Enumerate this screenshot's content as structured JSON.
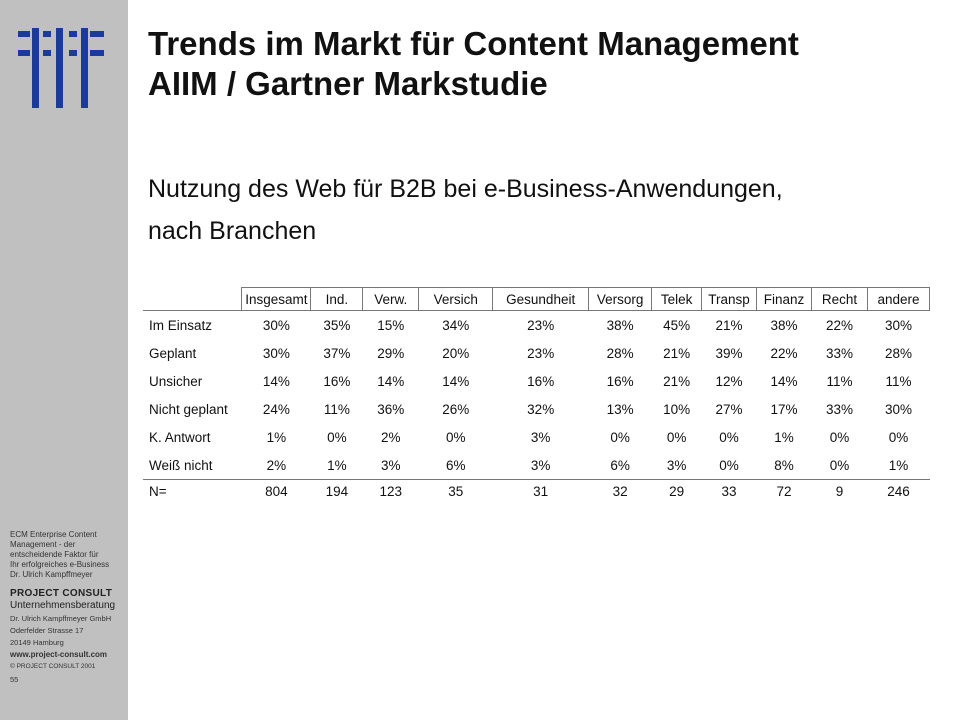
{
  "slide": {
    "title_line1": "Trends im Markt für Content Management",
    "title_line2": "AIIM / Gartner Markstudie",
    "subtitle_line1": "Nutzung des Web für B2B bei e-Business-Anwendungen,",
    "subtitle_line2": "nach Branchen"
  },
  "table": {
    "headers": [
      "Insgesamt",
      "Ind.",
      "Verw.",
      "Versich",
      "Gesundheit",
      "Versorg",
      "Telek",
      "Transp",
      "Finanz",
      "Recht",
      "andere"
    ],
    "rows": [
      {
        "label": "Im Einsatz",
        "values": [
          "30%",
          "35%",
          "15%",
          "34%",
          "23%",
          "38%",
          "45%",
          "21%",
          "38%",
          "22%",
          "30%"
        ]
      },
      {
        "label": "Geplant",
        "values": [
          "30%",
          "37%",
          "29%",
          "20%",
          "23%",
          "28%",
          "21%",
          "39%",
          "22%",
          "33%",
          "28%"
        ]
      },
      {
        "label": "Unsicher",
        "values": [
          "14%",
          "16%",
          "14%",
          "14%",
          "16%",
          "16%",
          "21%",
          "12%",
          "14%",
          "11%",
          "11%"
        ]
      },
      {
        "label": "Nicht geplant",
        "values": [
          "24%",
          "11%",
          "36%",
          "26%",
          "32%",
          "13%",
          "10%",
          "27%",
          "17%",
          "33%",
          "30%"
        ]
      },
      {
        "label": "K. Antwort",
        "values": [
          "1%",
          "0%",
          "2%",
          "0%",
          "3%",
          "0%",
          "0%",
          "0%",
          "1%",
          "0%",
          "0%"
        ]
      },
      {
        "label": "Weiß nicht",
        "values": [
          "2%",
          "1%",
          "3%",
          "6%",
          "3%",
          "6%",
          "3%",
          "0%",
          "8%",
          "0%",
          "1%"
        ]
      }
    ],
    "n_row": {
      "label": "N=",
      "values": [
        "804",
        "194",
        "123",
        "35",
        "31",
        "32",
        "29",
        "33",
        "72",
        "9",
        "246"
      ]
    }
  },
  "sidebar": {
    "desc_lines": [
      "ECM Enterprise Content",
      "Management - der",
      "entscheidende Faktor für",
      "Ihr erfolgreiches e-Business",
      "Dr. Ulrich Kampffmeyer"
    ],
    "brand": "PROJECT  CONSULT",
    "brand_sub": "Unternehmensberatung",
    "company": "Dr. Ulrich Kampffmeyer  GmbH",
    "street": "Oderfelder  Strasse 17",
    "city": "20149 Hamburg",
    "website": "www.project-consult.com",
    "copyright": "© PROJECT CONSULT  2001",
    "page_number": "55"
  },
  "colors": {
    "sidebar_bg": "#c0c0c0",
    "logo_blue": "#1a3a9c"
  }
}
